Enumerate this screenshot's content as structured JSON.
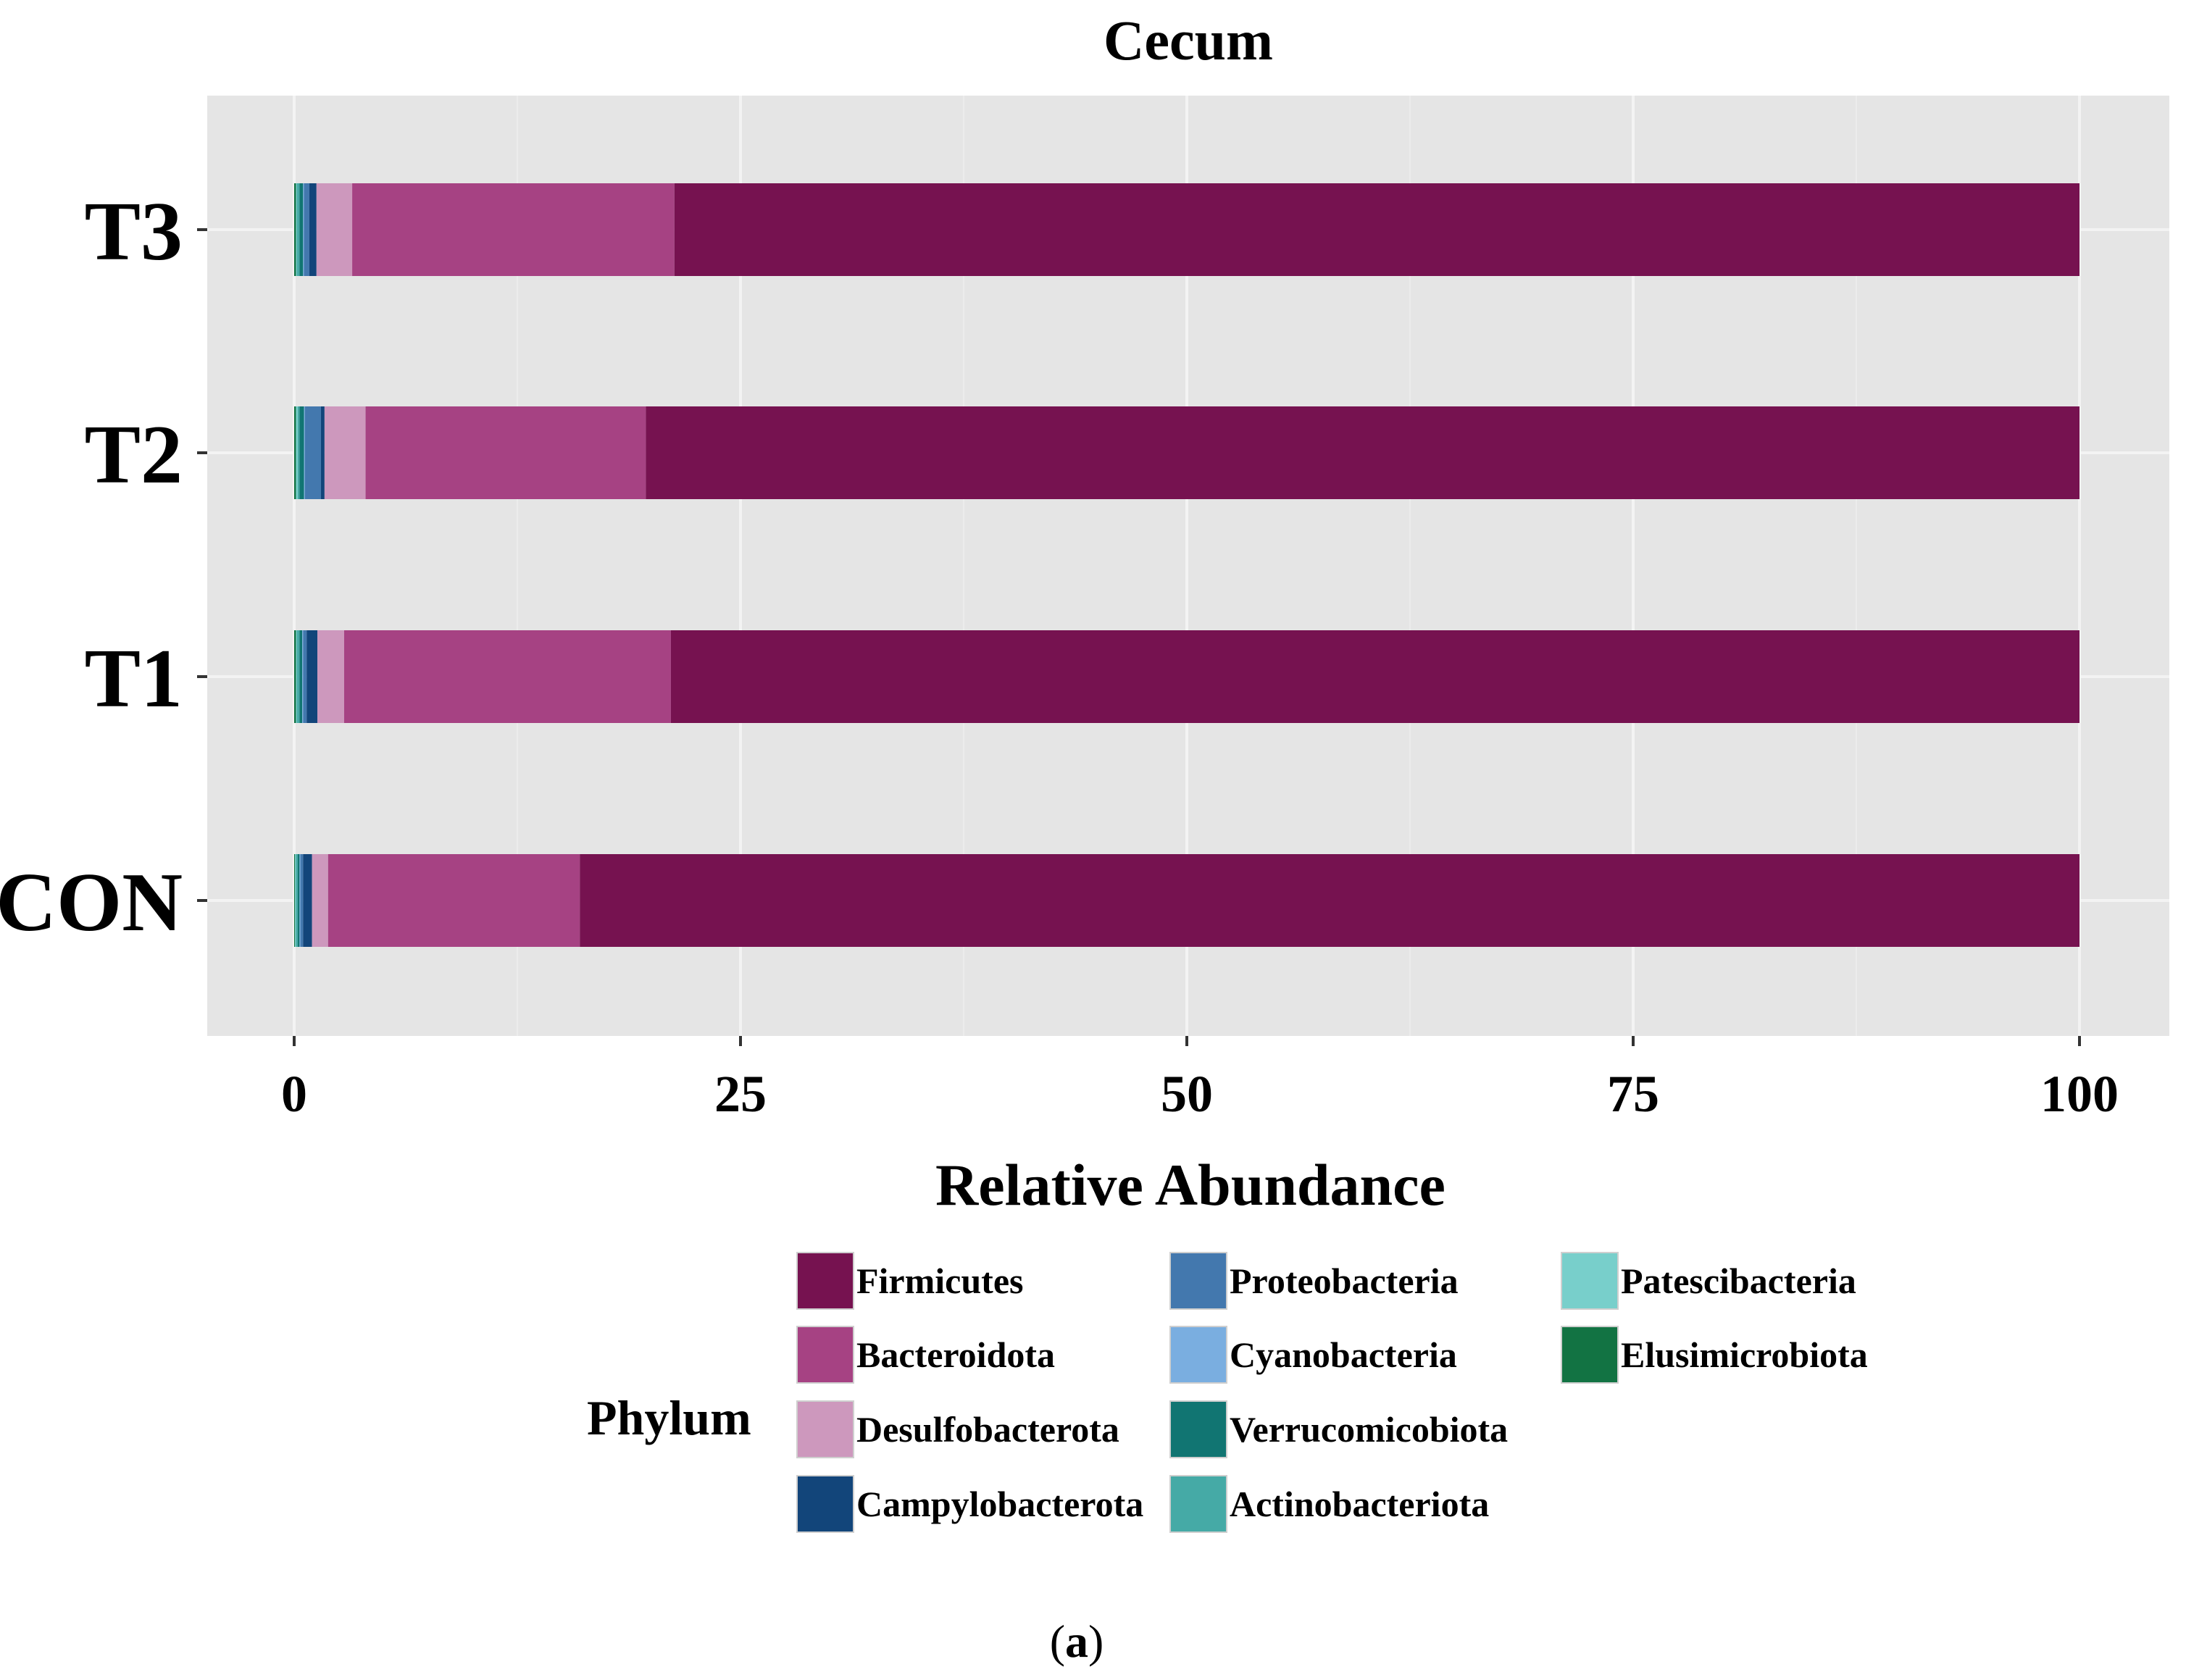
{
  "chart_data": {
    "type": "bar",
    "orientation": "horizontal",
    "stacked": true,
    "title": "Cecum",
    "xlabel": "Relative Abundance",
    "ylabel": "",
    "xlim": [
      0,
      100
    ],
    "xticks": [
      "0",
      "25",
      "50",
      "75",
      "100"
    ],
    "categories": [
      "CON",
      "T1",
      "T2",
      "T3"
    ],
    "legend_title": "Phylum",
    "legend_position": "bottom",
    "grid": true,
    "caption_open": "(",
    "caption_letter": "a",
    "caption_close": ")",
    "series": [
      {
        "name": "Elusimicrobiota",
        "color": "#127343",
        "values": [
          0.05,
          0.1,
          0.1,
          0.1
        ]
      },
      {
        "name": "Patescibacteria",
        "color": "#78cfcb",
        "values": [
          0.05,
          0.05,
          0.1,
          0.05
        ]
      },
      {
        "name": "Actinobacteriota",
        "color": "#45aaa6",
        "values": [
          0.1,
          0.15,
          0.1,
          0.15
        ]
      },
      {
        "name": "Verrucomicobiota",
        "color": "#117572",
        "values": [
          0.1,
          0.15,
          0.25,
          0.2
        ]
      },
      {
        "name": "Cyanobacteria",
        "color": "#7aaee0",
        "values": [
          0.05,
          0.05,
          0.05,
          0.05
        ]
      },
      {
        "name": "Proteobacteria",
        "color": "#4378ae",
        "values": [
          0.15,
          0.2,
          0.9,
          0.3
        ]
      },
      {
        "name": "Campylobacterota",
        "color": "#12457a",
        "values": [
          0.5,
          0.6,
          0.2,
          0.4
        ]
      },
      {
        "name": "Desulfobacterota",
        "color": "#cd98bd",
        "values": [
          0.9,
          1.5,
          2.3,
          2.0
        ]
      },
      {
        "name": "Bacteroidota",
        "color": "#a64283",
        "values": [
          14.1,
          18.3,
          15.7,
          18.05
        ]
      },
      {
        "name": "Firmicutes",
        "color": "#761250",
        "values": [
          84.0,
          78.9,
          80.3,
          78.7
        ]
      }
    ],
    "legend_order": [
      "Firmicutes",
      "Bacteroidota",
      "Desulfobacterota",
      "Campylobacterota",
      "Proteobacteria",
      "Cyanobacteria",
      "Verrucomicobiota",
      "Actinobacteriota",
      "Patescibacteria",
      "Elusimicrobiota"
    ],
    "colors": {
      "panel_background": "#e5e5e5",
      "grid_major": "#f3f3f3",
      "grid_minor": "#ececec",
      "text": "#000000"
    }
  }
}
